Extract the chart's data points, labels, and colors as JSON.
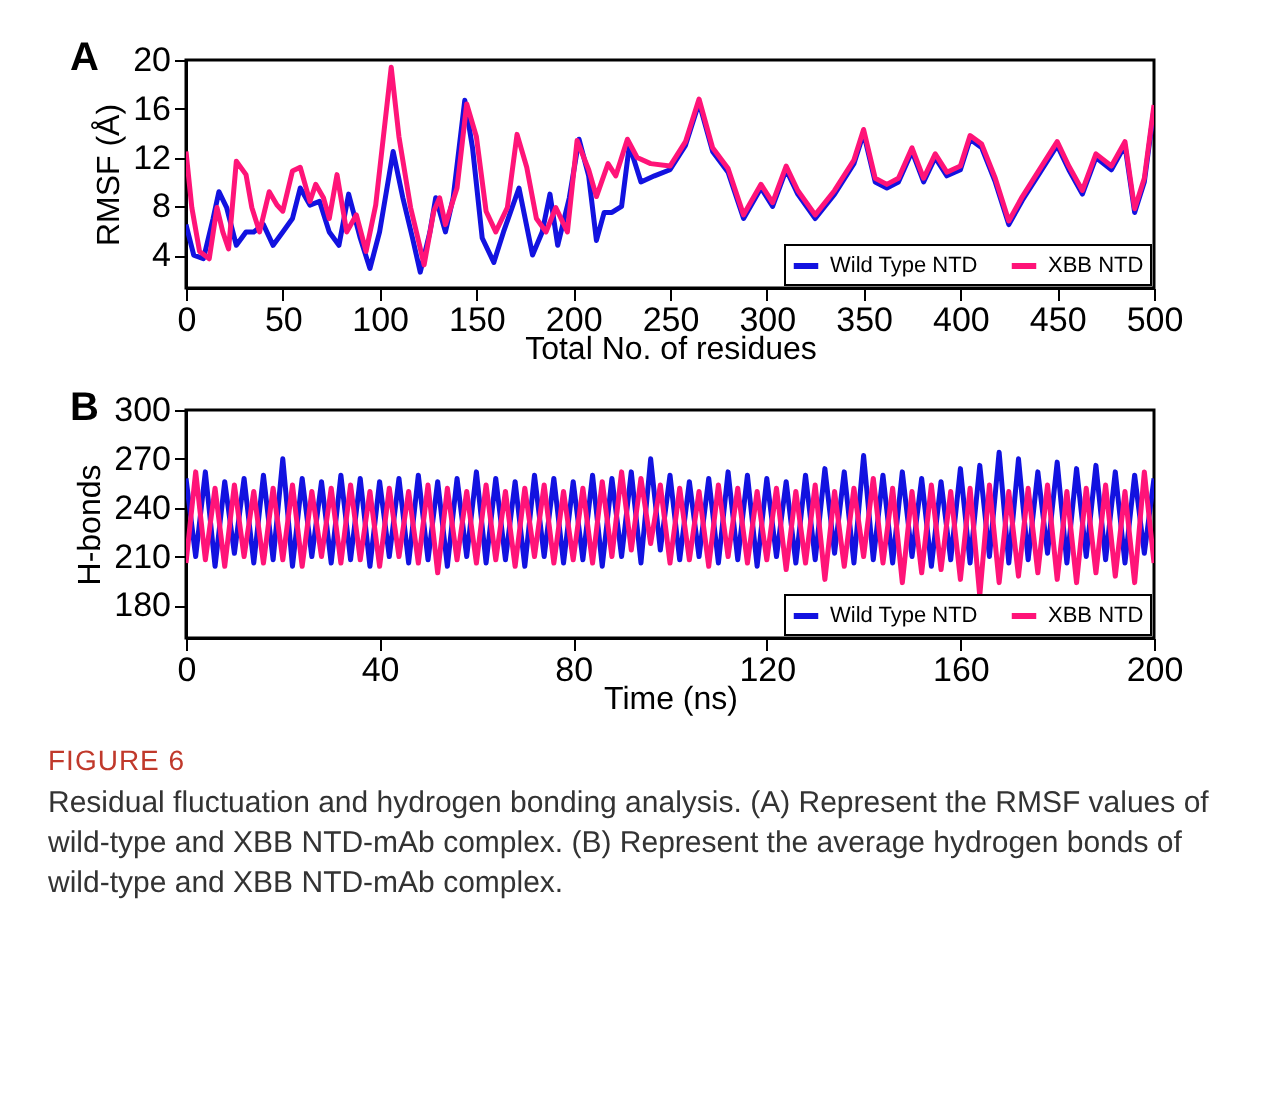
{
  "chart_data": [
    {
      "type": "line",
      "title": "A",
      "xlabel": "Total No. of residues",
      "ylabel": "RMSF (Å)",
      "xlim": [
        0,
        500
      ],
      "xticks": [
        0,
        50,
        100,
        150,
        200,
        250,
        300,
        350,
        400,
        450,
        500
      ],
      "ylim": [
        1.3,
        20
      ],
      "yticks": [
        4,
        8,
        12,
        16,
        20
      ],
      "grid": false,
      "legend": "bottom right",
      "series": [
        {
          "name": "Wild Type NTD",
          "color": "#1212e0",
          "x": [
            0,
            4,
            9,
            14,
            17,
            21,
            26,
            31,
            35,
            40,
            45,
            50,
            55,
            59,
            64,
            69,
            74,
            79,
            84,
            90,
            95,
            100,
            107,
            112,
            117,
            121,
            126,
            129,
            134,
            138,
            144,
            148,
            153,
            159,
            164,
            172,
            179,
            184,
            188,
            192,
            198,
            203,
            208,
            212,
            216,
            220,
            225,
            229,
            235,
            242,
            250,
            258,
            265,
            272,
            280,
            288,
            297,
            303,
            310,
            316,
            325,
            335,
            345,
            350,
            356,
            362,
            368,
            375,
            381,
            387,
            393,
            400,
            405,
            411,
            418,
            425,
            432,
            440,
            450,
            456,
            463,
            470,
            478,
            485,
            490,
            495,
            500
          ],
          "values": [
            6.5,
            4,
            3.7,
            7,
            9.2,
            7.9,
            4.8,
            5.9,
            5.9,
            6.5,
            4.8,
            5.9,
            7,
            9.5,
            8.1,
            8.4,
            5.9,
            4.8,
            9,
            5.4,
            2.9,
            5.9,
            12.5,
            8.7,
            5.4,
            2.6,
            5.9,
            8.7,
            5.9,
            8.7,
            16.7,
            12.8,
            5.4,
            3.4,
            5.9,
            9.5,
            4,
            5.9,
            9,
            4.8,
            8.7,
            13.5,
            10.5,
            5.2,
            7.5,
            7.5,
            8,
            13,
            10,
            10.5,
            11,
            13,
            16.5,
            12.5,
            10.8,
            7,
            9.5,
            8,
            11,
            9,
            7,
            9,
            11.5,
            14,
            10,
            9.5,
            10,
            12.5,
            10,
            12,
            10.5,
            11,
            13.5,
            12.8,
            10,
            6.5,
            8.5,
            10.5,
            13,
            11,
            9,
            12,
            11,
            13,
            7.5,
            10,
            16
          ]
        },
        {
          "name": "XBB NTD",
          "color": "#ff1478",
          "x": [
            0,
            3,
            7,
            12,
            16,
            19,
            22,
            26,
            31,
            34,
            38,
            43,
            47,
            50,
            55,
            59,
            64,
            67,
            71,
            74,
            78,
            83,
            88,
            93,
            98,
            106,
            110,
            116,
            119,
            123,
            128,
            131,
            134,
            140,
            145,
            150,
            155,
            160,
            166,
            171,
            176,
            181,
            186,
            191,
            197,
            202,
            208,
            212,
            218,
            222,
            228,
            233,
            240,
            250,
            258,
            265,
            272,
            280,
            288,
            297,
            303,
            310,
            316,
            325,
            335,
            345,
            350,
            356,
            362,
            368,
            375,
            381,
            387,
            393,
            400,
            405,
            411,
            418,
            425,
            432,
            440,
            450,
            456,
            463,
            470,
            478,
            485,
            490,
            495,
            500
          ],
          "values": [
            12.5,
            7.9,
            4.3,
            3.7,
            7.9,
            5.9,
            4.5,
            11.7,
            10.6,
            7.9,
            5.9,
            9.2,
            8.1,
            7.6,
            10.9,
            11.2,
            8.4,
            9.8,
            8.7,
            7,
            10.6,
            5.9,
            7.3,
            4.3,
            8.1,
            19.4,
            13.7,
            7.9,
            5.9,
            3.2,
            7.6,
            8.7,
            6.5,
            9.5,
            16.4,
            13.7,
            7.6,
            5.9,
            7.9,
            13.9,
            11.2,
            7,
            5.9,
            7.9,
            5.9,
            13.4,
            11,
            8.8,
            11.5,
            10.5,
            13.5,
            12,
            11.5,
            11.3,
            13.3,
            16.8,
            12.8,
            11.1,
            7.3,
            9.8,
            8.3,
            11.3,
            9.3,
            7.3,
            9.3,
            11.8,
            14.3,
            10.3,
            9.8,
            10.3,
            12.8,
            10.3,
            12.3,
            10.8,
            11.3,
            13.8,
            13.1,
            10.3,
            6.8,
            8.8,
            10.8,
            13.3,
            11.3,
            9.3,
            12.3,
            11.3,
            13.3,
            7.8,
            10.3,
            16.3
          ]
        }
      ]
    },
    {
      "type": "line",
      "title": "B",
      "xlabel": "Time (ns)",
      "ylabel": "H-bonds",
      "xlim": [
        0,
        200
      ],
      "xticks": [
        0,
        40,
        80,
        120,
        160,
        200
      ],
      "ylim": [
        160,
        300
      ],
      "yticks": [
        180,
        210,
        240,
        270,
        300
      ],
      "grid": false,
      "legend": "bottom right",
      "x": [
        0,
        2,
        4,
        6,
        8,
        10,
        12,
        14,
        16,
        18,
        20,
        22,
        24,
        26,
        28,
        30,
        32,
        34,
        36,
        38,
        40,
        42,
        44,
        46,
        48,
        50,
        52,
        54,
        56,
        58,
        60,
        62,
        64,
        66,
        68,
        70,
        72,
        74,
        76,
        78,
        80,
        82,
        84,
        86,
        88,
        90,
        92,
        94,
        96,
        98,
        100,
        102,
        104,
        106,
        108,
        110,
        112,
        114,
        116,
        118,
        120,
        122,
        124,
        126,
        128,
        130,
        132,
        134,
        136,
        138,
        140,
        142,
        144,
        146,
        148,
        150,
        152,
        154,
        156,
        158,
        160,
        162,
        164,
        166,
        168,
        170,
        172,
        174,
        176,
        178,
        180,
        182,
        184,
        186,
        188,
        190,
        192,
        194,
        196,
        198,
        200
      ],
      "annotations": [
        "FIGURE 6",
        "Residual fluctuation and hydrogen bonding analysis. (A) Represent the RMSF values of wild-type and XBB NTD-mAb complex. (B) Represent the average hydrogen bonds of wild-type and XBB NTD-mAb complex."
      ],
      "series": [
        {
          "name": "Wild Type NTD",
          "color": "#1212e0",
          "values": [
            258,
            210,
            262,
            204,
            256,
            212,
            258,
            206,
            260,
            208,
            270,
            204,
            258,
            210,
            256,
            206,
            260,
            208,
            258,
            204,
            256,
            210,
            258,
            206,
            260,
            208,
            256,
            204,
            258,
            210,
            262,
            206,
            258,
            208,
            256,
            204,
            260,
            210,
            258,
            206,
            256,
            208,
            260,
            204,
            258,
            210,
            262,
            206,
            270,
            214,
            260,
            208,
            256,
            210,
            258,
            206,
            262,
            208,
            260,
            204,
            258,
            210,
            256,
            206,
            260,
            208,
            264,
            212,
            262,
            206,
            272,
            208,
            260,
            206,
            262,
            210,
            258,
            204,
            256,
            208,
            264,
            206,
            266,
            210,
            274,
            206,
            270,
            208,
            262,
            212,
            268,
            206,
            264,
            210,
            266,
            208,
            262,
            206,
            260,
            212,
            258
          ]
        },
        {
          "name": "XBB NTD",
          "color": "#ff1478",
          "values": [
            206,
            262,
            208,
            252,
            204,
            254,
            210,
            250,
            206,
            252,
            208,
            254,
            204,
            250,
            210,
            252,
            206,
            254,
            208,
            250,
            204,
            252,
            210,
            250,
            206,
            254,
            200,
            252,
            208,
            250,
            206,
            254,
            208,
            250,
            204,
            252,
            210,
            254,
            206,
            250,
            208,
            252,
            206,
            256,
            210,
            262,
            214,
            258,
            218,
            254,
            206,
            252,
            208,
            250,
            204,
            254,
            210,
            252,
            206,
            250,
            208,
            252,
            202,
            250,
            206,
            254,
            196,
            250,
            204,
            252,
            210,
            258,
            206,
            252,
            194,
            250,
            200,
            254,
            202,
            250,
            196,
            252,
            186,
            254,
            194,
            250,
            198,
            252,
            200,
            254,
            196,
            250,
            194,
            252,
            200,
            254,
            198,
            250,
            194,
            262,
            206
          ]
        }
      ]
    }
  ]
}
